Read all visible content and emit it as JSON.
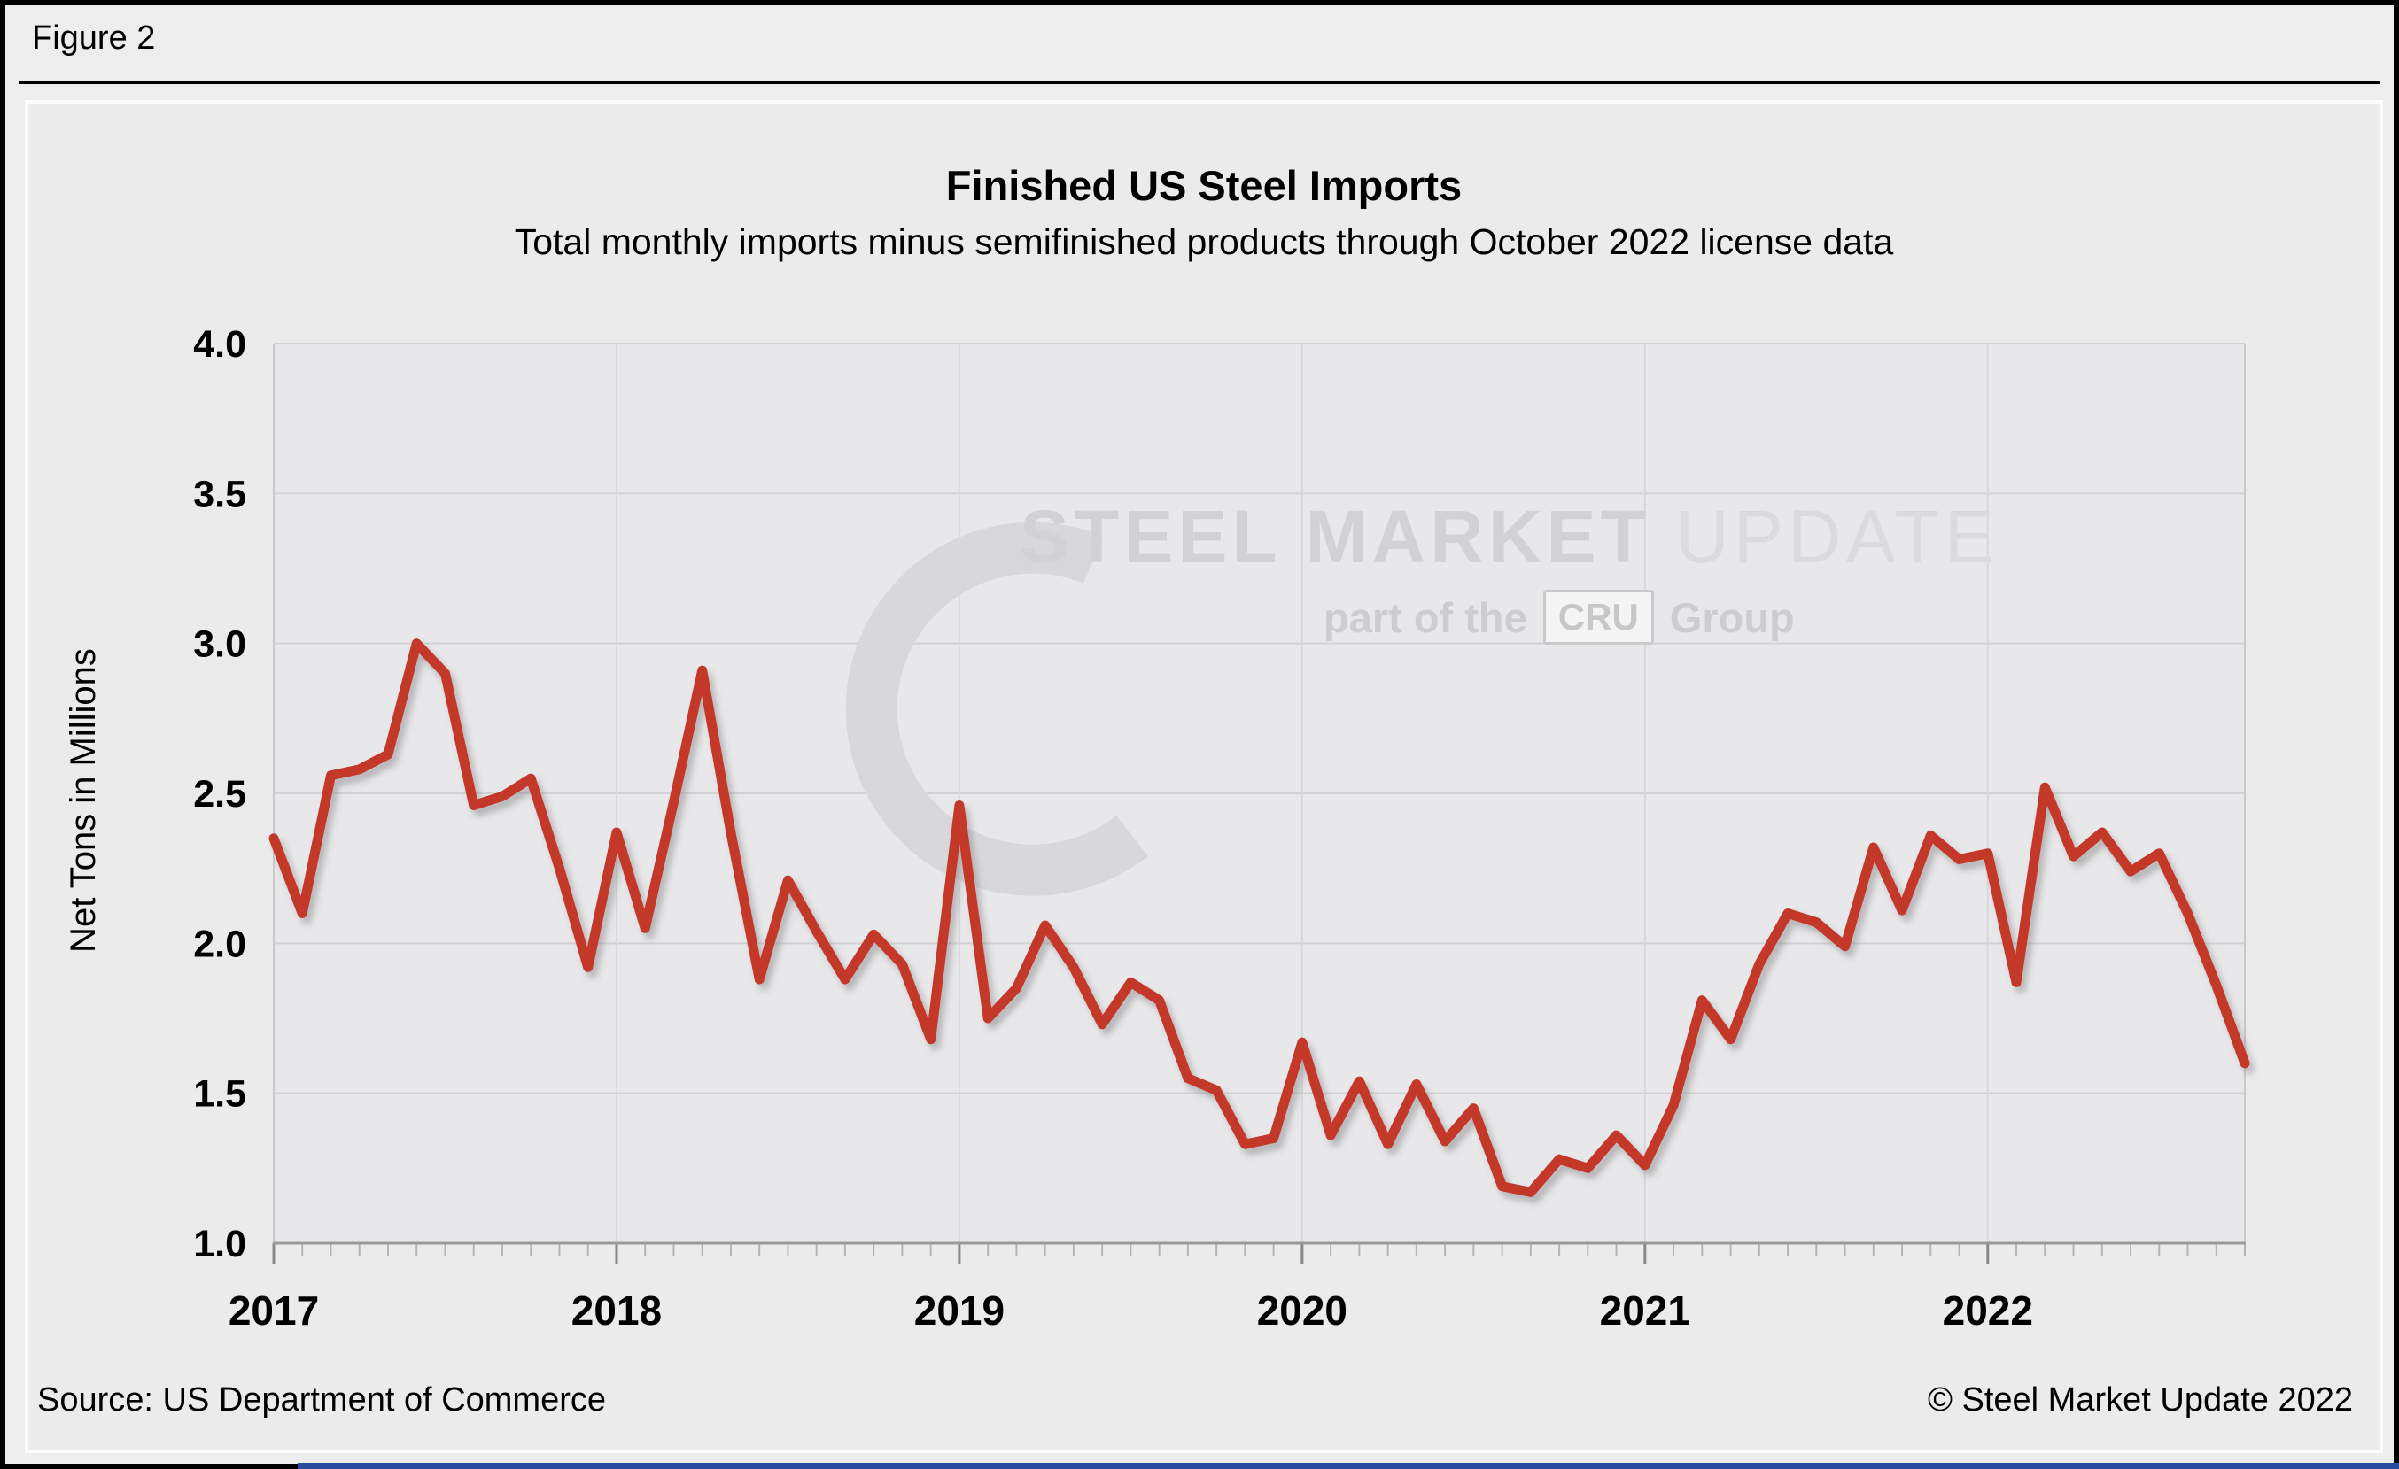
{
  "figure_label": "Figure 2",
  "chart_data": {
    "type": "line",
    "title": "Finished US Steel Imports",
    "subtitle": "Total monthly imports minus semifinished products through October 2022 license data",
    "ylabel": "Net Tons in Millions",
    "ylim": [
      1.0,
      4.0
    ],
    "yticks": [
      4.0,
      3.5,
      3.0,
      2.5,
      2.0,
      1.5,
      1.0
    ],
    "ytick_labels": [
      "4.0",
      "3.5",
      "3.0",
      "2.5",
      "2.0",
      "1.5",
      "1.0"
    ],
    "xtick_years": [
      "2017",
      "2018",
      "2019",
      "2020",
      "2021",
      "2022"
    ],
    "grid": true,
    "legend": false,
    "months": [
      "2017-01",
      "2017-02",
      "2017-03",
      "2017-04",
      "2017-05",
      "2017-06",
      "2017-07",
      "2017-08",
      "2017-09",
      "2017-10",
      "2017-11",
      "2017-12",
      "2018-01",
      "2018-02",
      "2018-03",
      "2018-04",
      "2018-05",
      "2018-06",
      "2018-07",
      "2018-08",
      "2018-09",
      "2018-10",
      "2018-11",
      "2018-12",
      "2019-01",
      "2019-02",
      "2019-03",
      "2019-04",
      "2019-05",
      "2019-06",
      "2019-07",
      "2019-08",
      "2019-09",
      "2019-10",
      "2019-11",
      "2019-12",
      "2020-01",
      "2020-02",
      "2020-03",
      "2020-04",
      "2020-05",
      "2020-06",
      "2020-07",
      "2020-08",
      "2020-09",
      "2020-10",
      "2020-11",
      "2020-12",
      "2021-01",
      "2021-02",
      "2021-03",
      "2021-04",
      "2021-05",
      "2021-06",
      "2021-07",
      "2021-08",
      "2021-09",
      "2021-10",
      "2021-11",
      "2021-12",
      "2022-01",
      "2022-02",
      "2022-03",
      "2022-04",
      "2022-05",
      "2022-06",
      "2022-07",
      "2022-08",
      "2022-09",
      "2022-10"
    ],
    "series": [
      {
        "name": "Finished US steel imports (net tons, millions)",
        "color": "#c4392a",
        "values": [
          2.35,
          2.1,
          2.56,
          2.58,
          2.63,
          3.0,
          2.9,
          2.46,
          2.49,
          2.55,
          2.25,
          1.92,
          2.37,
          2.05,
          2.47,
          2.91,
          2.37,
          1.88,
          2.21,
          2.04,
          1.88,
          2.03,
          1.93,
          1.68,
          2.46,
          1.75,
          1.85,
          2.06,
          1.92,
          1.73,
          1.87,
          1.81,
          1.55,
          1.51,
          1.33,
          1.35,
          1.67,
          1.36,
          1.54,
          1.33,
          1.53,
          1.34,
          1.45,
          1.19,
          1.17,
          1.28,
          1.25,
          1.36,
          1.26,
          1.46,
          1.81,
          1.68,
          1.93,
          2.1,
          2.07,
          1.99,
          2.32,
          2.11,
          2.36,
          2.28,
          2.3,
          1.87,
          2.52,
          2.29,
          2.37,
          2.24,
          2.3,
          2.1,
          1.86,
          1.6
        ]
      }
    ]
  },
  "watermark": {
    "line1_bold": "STEEL MARKET ",
    "line1_light": "UPDATE",
    "line2_prefix": "part of the",
    "line2_box": "CRU",
    "line2_suffix": "Group"
  },
  "footer": {
    "source": "Source: US Department of Commerce",
    "copyright": "© Steel Market Update 2022"
  },
  "colors": {
    "line": "#c4392a",
    "plot_bg": "#e8e8ea",
    "grid": "#d2d2d4",
    "year_grid": "#d8d8da",
    "axis": "#9a9a9c",
    "minor_tick": "#b4b4b6",
    "major_tick": "#88888a",
    "plot_border": "#c9c9cb",
    "watermark": "#d8d8da",
    "blue_bar": "#2b4a9d"
  }
}
